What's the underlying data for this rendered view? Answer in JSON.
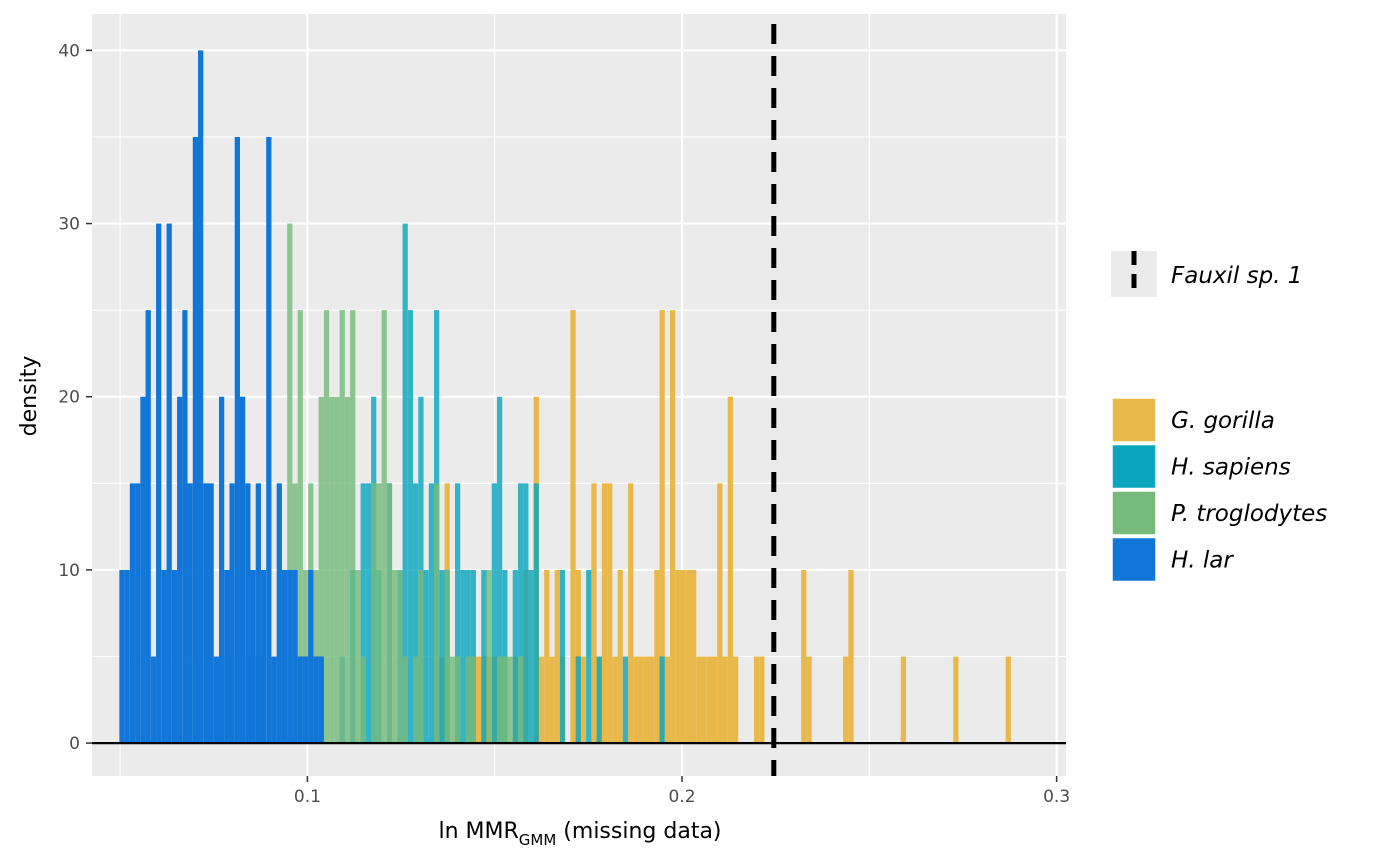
{
  "chart_data": {
    "type": "histogram",
    "xlabel": {
      "main": "ln MMR",
      "subscript": "GMM",
      "suffix": " (missing data)"
    },
    "ylabel": "density",
    "xlim": [
      0.0425,
      0.3025
    ],
    "ylim": [
      -1.9,
      42.1
    ],
    "x_ticks": [
      {
        "value": 0.1,
        "label": "0.1"
      },
      {
        "value": 0.2,
        "label": "0.2"
      },
      {
        "value": 0.3,
        "label": "0.3"
      }
    ],
    "y_ticks": [
      {
        "value": 0,
        "label": "0"
      },
      {
        "value": 10,
        "label": "10"
      },
      {
        "value": 20,
        "label": "20"
      },
      {
        "value": 30,
        "label": "30"
      },
      {
        "value": 40,
        "label": "40"
      }
    ],
    "x_minor_breaks": [
      0.05,
      0.15,
      0.25
    ],
    "y_minor_breaks": [
      5,
      15,
      25,
      35
    ],
    "bin_width": 0.0014,
    "grid": true,
    "reference_line": {
      "name": "Fauxil sp. 1",
      "x": 0.2245,
      "style": "dashed",
      "color": "#000000"
    },
    "legend_position": "right",
    "series": [
      {
        "name": "G. gorilla",
        "color": "#E8B84A",
        "opacity": 1.0,
        "bins": [
          [
            0.1359,
            5
          ],
          [
            0.1373,
            15
          ],
          [
            0.1401,
            5
          ],
          [
            0.1443,
            5
          ],
          [
            0.1457,
            5
          ],
          [
            0.1471,
            5
          ],
          [
            0.1485,
            5
          ],
          [
            0.1499,
            5
          ],
          [
            0.1513,
            5
          ],
          [
            0.1527,
            5
          ],
          [
            0.1555,
            5
          ],
          [
            0.1583,
            10
          ],
          [
            0.1611,
            20
          ],
          [
            0.1625,
            5
          ],
          [
            0.1639,
            10
          ],
          [
            0.1653,
            5
          ],
          [
            0.1667,
            10
          ],
          [
            0.1681,
            5
          ],
          [
            0.1709,
            25
          ],
          [
            0.1723,
            10
          ],
          [
            0.1737,
            5
          ],
          [
            0.1765,
            15
          ],
          [
            0.1779,
            5
          ],
          [
            0.1793,
            15
          ],
          [
            0.1807,
            15
          ],
          [
            0.1821,
            5
          ],
          [
            0.1835,
            10
          ],
          [
            0.1863,
            15
          ],
          [
            0.1877,
            5
          ],
          [
            0.1891,
            5
          ],
          [
            0.1905,
            5
          ],
          [
            0.1919,
            5
          ],
          [
            0.1933,
            10
          ],
          [
            0.1947,
            25
          ],
          [
            0.1961,
            5
          ],
          [
            0.1975,
            25
          ],
          [
            0.1989,
            10
          ],
          [
            0.2003,
            10
          ],
          [
            0.2017,
            10
          ],
          [
            0.2031,
            10
          ],
          [
            0.2045,
            5
          ],
          [
            0.2059,
            5
          ],
          [
            0.2073,
            5
          ],
          [
            0.2087,
            5
          ],
          [
            0.2101,
            15
          ],
          [
            0.2115,
            5
          ],
          [
            0.2129,
            20
          ],
          [
            0.2143,
            5
          ],
          [
            0.2199,
            5
          ],
          [
            0.2213,
            5
          ],
          [
            0.2325,
            10
          ],
          [
            0.2339,
            5
          ],
          [
            0.2437,
            5
          ],
          [
            0.2451,
            10
          ],
          [
            0.2591,
            5
          ],
          [
            0.2731,
            5
          ],
          [
            0.2871,
            5
          ]
        ]
      },
      {
        "name": "H. sapiens",
        "color": "#0BA6BD",
        "opacity": 0.82,
        "bins": [
          [
            0.0701,
            5
          ],
          [
            0.0743,
            5
          ],
          [
            0.0771,
            5
          ],
          [
            0.0813,
            5
          ],
          [
            0.0841,
            5
          ],
          [
            0.0869,
            5
          ],
          [
            0.0925,
            5
          ],
          [
            0.0967,
            5
          ],
          [
            0.1009,
            5
          ],
          [
            0.1037,
            5
          ],
          [
            0.1093,
            5
          ],
          [
            0.1121,
            10
          ],
          [
            0.1149,
            15
          ],
          [
            0.1163,
            15
          ],
          [
            0.1177,
            20
          ],
          [
            0.1191,
            10
          ],
          [
            0.1219,
            15
          ],
          [
            0.1247,
            10
          ],
          [
            0.1261,
            30
          ],
          [
            0.1275,
            25
          ],
          [
            0.1289,
            15
          ],
          [
            0.1303,
            20
          ],
          [
            0.1317,
            10
          ],
          [
            0.1331,
            15
          ],
          [
            0.1345,
            25
          ],
          [
            0.1359,
            10
          ],
          [
            0.1373,
            10
          ],
          [
            0.1401,
            15
          ],
          [
            0.1415,
            10
          ],
          [
            0.1429,
            10
          ],
          [
            0.1443,
            10
          ],
          [
            0.1471,
            10
          ],
          [
            0.1499,
            15
          ],
          [
            0.1513,
            20
          ],
          [
            0.1527,
            10
          ],
          [
            0.1555,
            10
          ],
          [
            0.1569,
            15
          ],
          [
            0.1583,
            15
          ],
          [
            0.1597,
            10
          ],
          [
            0.1611,
            15
          ],
          [
            0.1681,
            10
          ],
          [
            0.1723,
            5
          ],
          [
            0.1751,
            10
          ],
          [
            0.1779,
            5
          ],
          [
            0.1849,
            5
          ],
          [
            0.1947,
            5
          ]
        ]
      },
      {
        "name": "P. troglodytes",
        "color": "#76BB7C",
        "opacity": 0.82,
        "bins": [
          [
            0.0939,
            10
          ],
          [
            0.0953,
            30
          ],
          [
            0.0967,
            15
          ],
          [
            0.0981,
            25
          ],
          [
            0.0995,
            10
          ],
          [
            0.1009,
            15
          ],
          [
            0.1023,
            10
          ],
          [
            0.1037,
            20
          ],
          [
            0.1051,
            25
          ],
          [
            0.1065,
            20
          ],
          [
            0.1079,
            20
          ],
          [
            0.1093,
            25
          ],
          [
            0.1107,
            20
          ],
          [
            0.1121,
            25
          ],
          [
            0.1135,
            10
          ],
          [
            0.1149,
            5
          ],
          [
            0.1177,
            15
          ],
          [
            0.1191,
            15
          ],
          [
            0.1205,
            25
          ],
          [
            0.1219,
            15
          ],
          [
            0.1233,
            10
          ],
          [
            0.1247,
            10
          ],
          [
            0.1261,
            5
          ],
          [
            0.1289,
            5
          ],
          [
            0.1303,
            10
          ],
          [
            0.1345,
            15
          ],
          [
            0.1373,
            10
          ],
          [
            0.1387,
            5
          ],
          [
            0.1401,
            5
          ],
          [
            0.1429,
            5
          ],
          [
            0.1443,
            5
          ],
          [
            0.1485,
            10
          ],
          [
            0.1513,
            5
          ],
          [
            0.1527,
            5
          ],
          [
            0.1541,
            5
          ],
          [
            0.1569,
            5
          ]
        ]
      },
      {
        "name": "H. lar",
        "color": "#1276D9",
        "opacity": 1.0,
        "bins": [
          [
            0.0505,
            10
          ],
          [
            0.0519,
            10
          ],
          [
            0.0533,
            15
          ],
          [
            0.0547,
            15
          ],
          [
            0.0561,
            20
          ],
          [
            0.0575,
            25
          ],
          [
            0.0589,
            5
          ],
          [
            0.0603,
            30
          ],
          [
            0.0617,
            10
          ],
          [
            0.0631,
            30
          ],
          [
            0.0645,
            10
          ],
          [
            0.0659,
            20
          ],
          [
            0.0673,
            25
          ],
          [
            0.0687,
            15
          ],
          [
            0.0701,
            35
          ],
          [
            0.0715,
            40
          ],
          [
            0.0729,
            15
          ],
          [
            0.0743,
            15
          ],
          [
            0.0757,
            5
          ],
          [
            0.0771,
            20
          ],
          [
            0.0785,
            10
          ],
          [
            0.0799,
            15
          ],
          [
            0.0813,
            35
          ],
          [
            0.0827,
            20
          ],
          [
            0.0841,
            15
          ],
          [
            0.0855,
            10
          ],
          [
            0.0869,
            15
          ],
          [
            0.0883,
            10
          ],
          [
            0.0897,
            35
          ],
          [
            0.0911,
            5
          ],
          [
            0.0925,
            15
          ],
          [
            0.0939,
            10
          ],
          [
            0.0953,
            10
          ],
          [
            0.0967,
            10
          ],
          [
            0.0981,
            5
          ],
          [
            0.0995,
            5
          ],
          [
            0.1009,
            10
          ],
          [
            0.1023,
            5
          ],
          [
            0.1037,
            5
          ]
        ]
      }
    ]
  }
}
